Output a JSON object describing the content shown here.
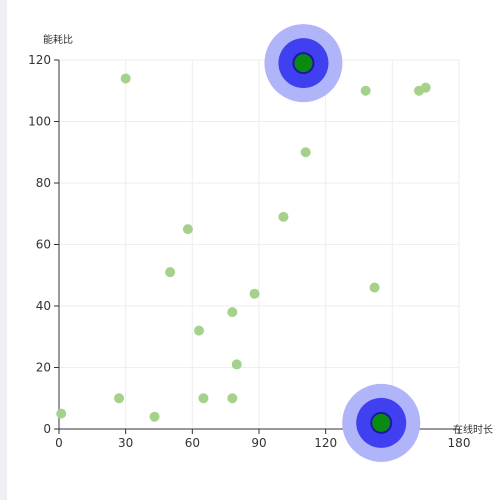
{
  "chart_data": {
    "type": "scatter",
    "xlabel": "在线时长",
    "ylabel": "能耗比",
    "xlim": [
      0,
      180
    ],
    "ylim": [
      0,
      120
    ],
    "x_ticks": [
      0,
      30,
      60,
      90,
      120,
      150,
      180
    ],
    "y_ticks": [
      0,
      20,
      40,
      60,
      80,
      100,
      120
    ],
    "grid": true,
    "series": [
      {
        "points": [
          [
            1,
            5
          ],
          [
            27,
            10
          ],
          [
            30,
            114
          ],
          [
            43,
            4
          ],
          [
            50,
            51
          ],
          [
            58,
            65
          ],
          [
            63,
            32
          ],
          [
            65,
            10
          ],
          [
            78,
            38
          ],
          [
            78,
            10
          ],
          [
            80,
            21
          ],
          [
            88,
            44
          ],
          [
            101,
            69
          ],
          [
            111,
            90
          ],
          [
            138,
            110
          ],
          [
            142,
            46
          ],
          [
            162,
            110
          ],
          [
            165,
            111
          ]
        ],
        "color": "#a5d18a"
      },
      {
        "points": [
          [
            110,
            119
          ],
          [
            145,
            2
          ]
        ],
        "color": "#0a8a10",
        "stroke": "#1a1aa0",
        "halo_inner": "#4040f0",
        "halo_outer": "#b0b4f8"
      }
    ]
  }
}
